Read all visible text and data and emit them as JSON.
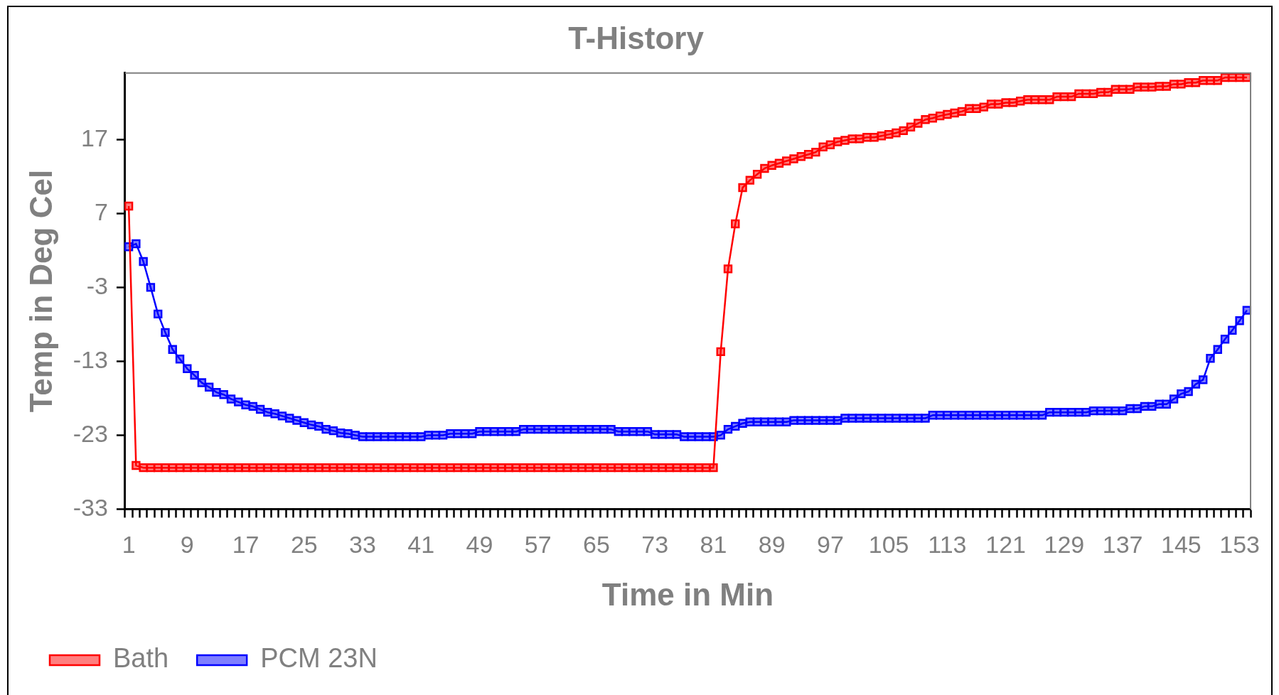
{
  "chart_data": {
    "type": "line",
    "title": "T-History",
    "xlabel": "Time in Min",
    "ylabel": "Temp in Deg Cel",
    "categories": [
      "1",
      null,
      null,
      null,
      null,
      null,
      null,
      null,
      "9",
      null,
      null,
      null,
      null,
      null,
      null,
      null,
      "17",
      null,
      null,
      null,
      null,
      null,
      null,
      null,
      "25",
      null,
      null,
      null,
      null,
      null,
      null,
      null,
      "33",
      null,
      null,
      null,
      null,
      null,
      null,
      null,
      "41",
      null,
      null,
      null,
      null,
      null,
      null,
      null,
      "49",
      null,
      null,
      null,
      null,
      null,
      null,
      null,
      "57",
      null,
      null,
      null,
      null,
      null,
      null,
      null,
      "65",
      null,
      null,
      null,
      null,
      null,
      null,
      null,
      "73",
      null,
      null,
      null,
      null,
      null,
      null,
      null,
      "81",
      null,
      null,
      null,
      null,
      null,
      null,
      null,
      "89",
      null,
      null,
      null,
      null,
      null,
      null,
      null,
      "97",
      null,
      null,
      null,
      null,
      null,
      null,
      null,
      "105",
      null,
      null,
      null,
      null,
      null,
      null,
      null,
      "113",
      null,
      null,
      null,
      null,
      null,
      null,
      null,
      "121",
      null,
      null,
      null,
      null,
      null,
      null,
      null,
      "129",
      null,
      null,
      null,
      null,
      null,
      null,
      null,
      "137",
      null,
      null,
      null,
      null,
      null,
      null,
      null,
      "145",
      null,
      null,
      null,
      null,
      null,
      null,
      null,
      "153",
      null
    ],
    "series": [
      {
        "name": "Bath",
        "color": "#ff0000",
        "values": [
          8.0,
          -27.1,
          -27.4,
          -27.4,
          -27.4,
          -27.4,
          -27.4,
          -27.4,
          -27.4,
          -27.4,
          -27.4,
          -27.4,
          -27.4,
          -27.4,
          -27.4,
          -27.4,
          -27.4,
          -27.4,
          -27.4,
          -27.4,
          -27.4,
          -27.4,
          -27.4,
          -27.4,
          -27.4,
          -27.4,
          -27.4,
          -27.4,
          -27.4,
          -27.4,
          -27.4,
          -27.4,
          -27.4,
          -27.4,
          -27.4,
          -27.4,
          -27.4,
          -27.4,
          -27.4,
          -27.4,
          -27.4,
          -27.4,
          -27.4,
          -27.4,
          -27.4,
          -27.4,
          -27.4,
          -27.4,
          -27.4,
          -27.4,
          -27.4,
          -27.4,
          -27.4,
          -27.4,
          -27.4,
          -27.4,
          -27.4,
          -27.4,
          -27.4,
          -27.4,
          -27.4,
          -27.4,
          -27.4,
          -27.4,
          -27.4,
          -27.4,
          -27.4,
          -27.4,
          -27.4,
          -27.4,
          -27.4,
          -27.4,
          -27.4,
          -27.4,
          -27.4,
          -27.4,
          -27.4,
          -27.4,
          -27.4,
          -27.4,
          -27.4,
          -11.7,
          -0.5,
          5.6,
          10.5,
          11.5,
          12.3,
          13.1,
          13.5,
          13.8,
          14.1,
          14.4,
          14.7,
          15.0,
          15.3,
          16.0,
          16.3,
          16.7,
          16.9,
          17.1,
          17.1,
          17.3,
          17.3,
          17.5,
          17.7,
          17.9,
          18.2,
          18.7,
          19.2,
          19.7,
          19.9,
          20.2,
          20.4,
          20.6,
          20.8,
          21.2,
          21.2,
          21.4,
          21.8,
          21.8,
          22.0,
          22.0,
          22.2,
          22.4,
          22.4,
          22.4,
          22.4,
          22.8,
          22.8,
          22.8,
          23.2,
          23.2,
          23.2,
          23.4,
          23.4,
          23.8,
          23.8,
          23.8,
          24.1,
          24.1,
          24.1,
          24.2,
          24.2,
          24.5,
          24.5,
          24.7,
          24.7,
          25.0,
          25.0,
          25.0,
          25.4,
          25.4,
          25.4,
          25.4
        ]
      },
      {
        "name": "PCM 23N",
        "color": "#0000ff",
        "values": [
          2.5,
          2.9,
          0.5,
          -3.0,
          -6.6,
          -9.1,
          -11.4,
          -12.7,
          -14.0,
          -14.9,
          -15.9,
          -16.5,
          -17.2,
          -17.5,
          -18.1,
          -18.5,
          -18.9,
          -19.1,
          -19.5,
          -19.9,
          -20.1,
          -20.4,
          -20.7,
          -21.0,
          -21.3,
          -21.6,
          -21.8,
          -22.2,
          -22.4,
          -22.7,
          -22.8,
          -23.0,
          -23.2,
          -23.2,
          -23.2,
          -23.2,
          -23.2,
          -23.2,
          -23.2,
          -23.2,
          -23.2,
          -23.0,
          -23.0,
          -23.0,
          -22.8,
          -22.8,
          -22.8,
          -22.8,
          -22.5,
          -22.5,
          -22.5,
          -22.5,
          -22.5,
          -22.5,
          -22.2,
          -22.2,
          -22.2,
          -22.2,
          -22.2,
          -22.2,
          -22.2,
          -22.2,
          -22.2,
          -22.2,
          -22.2,
          -22.2,
          -22.2,
          -22.5,
          -22.5,
          -22.5,
          -22.5,
          -22.5,
          -22.9,
          -22.9,
          -22.9,
          -22.9,
          -23.2,
          -23.2,
          -23.2,
          -23.2,
          -23.2,
          -23.0,
          -22.2,
          -21.8,
          -21.4,
          -21.2,
          -21.2,
          -21.2,
          -21.2,
          -21.2,
          -21.2,
          -21.0,
          -21.0,
          -21.0,
          -21.0,
          -21.0,
          -21.0,
          -21.0,
          -20.7,
          -20.7,
          -20.7,
          -20.7,
          -20.7,
          -20.7,
          -20.7,
          -20.7,
          -20.7,
          -20.7,
          -20.7,
          -20.7,
          -20.3,
          -20.3,
          -20.3,
          -20.3,
          -20.3,
          -20.3,
          -20.3,
          -20.3,
          -20.3,
          -20.3,
          -20.3,
          -20.3,
          -20.3,
          -20.3,
          -20.3,
          -20.3,
          -19.9,
          -19.9,
          -19.9,
          -19.9,
          -19.9,
          -19.9,
          -19.7,
          -19.7,
          -19.7,
          -19.7,
          -19.7,
          -19.4,
          -19.4,
          -19.1,
          -19.1,
          -18.8,
          -18.8,
          -18.1,
          -17.4,
          -17.1,
          -16.1,
          -15.5,
          -12.6,
          -11.4,
          -10.0,
          -8.8,
          -7.5,
          -6.1
        ]
      }
    ],
    "ylim": [
      -33,
      26
    ],
    "yticks": [
      -33,
      -23,
      -13,
      -3,
      7,
      17
    ],
    "grid": false,
    "legend": "bottom left",
    "marker": "square",
    "line_style": "solid"
  }
}
